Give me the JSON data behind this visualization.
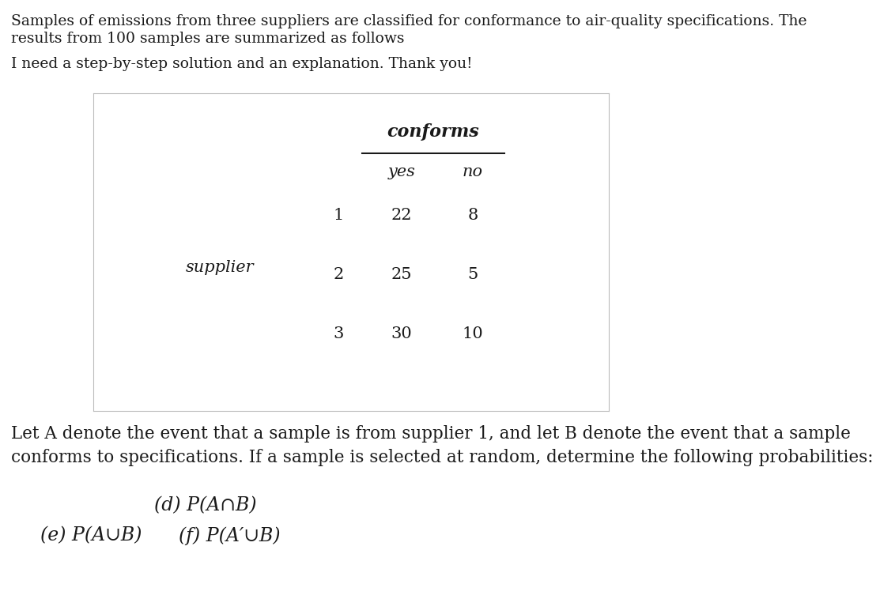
{
  "bg_color": "#ffffff",
  "text_color": "#1a1a1a",
  "intro_line1": "Samples of emissions from three suppliers are classified for conformance to air-quality specifications. The",
  "intro_line2": "results from 100 samples are summarized as follows",
  "step_request": "I need a step-by-step solution and an explanation. Thank you!",
  "table_header_main": "conforms",
  "table_col1": "yes",
  "table_col2": "no",
  "table_row_label": "supplier",
  "table_rows": [
    {
      "supplier": "1",
      "yes": "22",
      "no": "8"
    },
    {
      "supplier": "2",
      "yes": "25",
      "no": "5"
    },
    {
      "supplier": "3",
      "yes": "30",
      "no": "10"
    }
  ],
  "para_line1": "Let A denote the event that a sample is from supplier 1, and let B denote the event that a sample",
  "para_line2": "conforms to specifications. If a sample is selected at random, determine the following probabilities:",
  "prob_d": "(d) P(A∩B)",
  "prob_e": "(e) P(A∪B)",
  "prob_f": "(f) P(A′∪B)",
  "font_size_intro": 13.5,
  "font_size_table": 15,
  "font_size_para": 15.5,
  "font_size_prob": 17,
  "font_family": "DejaVu Serif"
}
